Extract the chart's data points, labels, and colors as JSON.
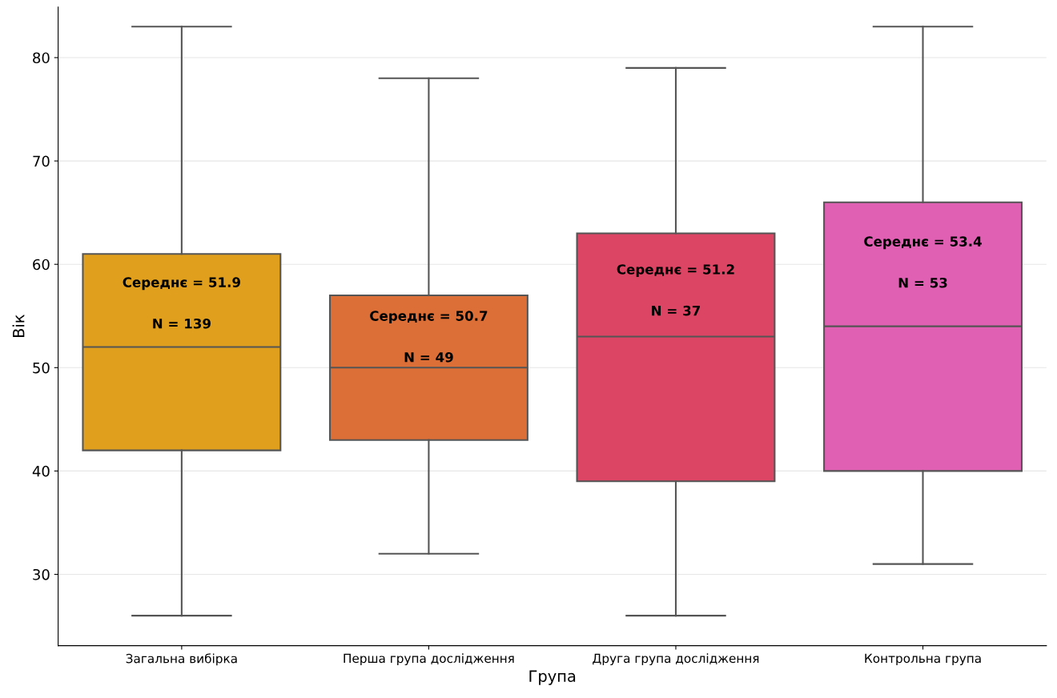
{
  "chart_data": {
    "type": "box",
    "xlabel": "Група",
    "ylabel": "Вік",
    "categories": [
      "Загальна вибірка",
      "Перша група дослідження",
      "Друга група дослідження",
      "Контрольна група"
    ],
    "colors": [
      "#e0a01e",
      "#dc6e37",
      "#dc4664",
      "#e060b4"
    ],
    "boxes": [
      {
        "low": 26,
        "q1": 42,
        "median": 52,
        "q3": 61,
        "high": 83
      },
      {
        "low": 32,
        "q1": 43,
        "median": 50,
        "q3": 57,
        "high": 78
      },
      {
        "low": 26,
        "q1": 39,
        "median": 53,
        "q3": 63,
        "high": 79
      },
      {
        "low": 31,
        "q1": 40,
        "median": 54,
        "q3": 66,
        "high": 83
      }
    ],
    "ylim": [
      23.1,
      84.9
    ],
    "yticks": [
      30,
      40,
      50,
      60,
      70,
      80
    ],
    "grid": "y",
    "annotations": [
      "Середнє = 51.9",
      "N = 139",
      "Середнє = 50.7",
      "N = 49",
      "Середнє = 51.2",
      "N = 37",
      "Середнє = 53.4",
      "N = 53"
    ]
  }
}
